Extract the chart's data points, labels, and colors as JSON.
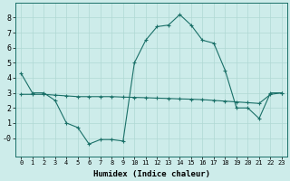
{
  "x": [
    0,
    1,
    2,
    3,
    4,
    5,
    6,
    7,
    8,
    9,
    10,
    11,
    12,
    13,
    14,
    15,
    16,
    17,
    18,
    19,
    20,
    21,
    22,
    23
  ],
  "y_curve": [
    4.3,
    3.0,
    3.0,
    2.5,
    1.0,
    0.7,
    -0.4,
    -0.1,
    -0.1,
    -0.2,
    5.0,
    6.5,
    7.4,
    7.5,
    8.2,
    7.5,
    6.5,
    6.3,
    4.5,
    2.0,
    2.0,
    1.3,
    3.0,
    3.0
  ],
  "y_flat": [
    2.9,
    2.9,
    2.9,
    2.85,
    2.8,
    2.75,
    2.75,
    2.75,
    2.75,
    2.72,
    2.7,
    2.68,
    2.65,
    2.63,
    2.6,
    2.58,
    2.55,
    2.5,
    2.45,
    2.4,
    2.35,
    2.3,
    2.9,
    3.0
  ],
  "line_color": "#1a7068",
  "bg_color": "#cdecea",
  "grid_color": "#b0d8d4",
  "xlabel": "Humidex (Indice chaleur)",
  "xlim": [
    -0.5,
    23.5
  ],
  "ylim": [
    -1.2,
    9.0
  ],
  "yticks": [
    0,
    1,
    2,
    3,
    4,
    5,
    6,
    7,
    8
  ],
  "ytick_labels": [
    "-0",
    "1",
    "2",
    "3",
    "4",
    "5",
    "6",
    "7",
    "8"
  ],
  "xticks": [
    0,
    1,
    2,
    3,
    4,
    5,
    6,
    7,
    8,
    9,
    10,
    11,
    12,
    13,
    14,
    15,
    16,
    17,
    18,
    19,
    20,
    21,
    22,
    23
  ],
  "marker": "+",
  "markersize": 3,
  "linewidth": 0.8,
  "xtick_fontsize": 5.0,
  "ytick_fontsize": 6.0,
  "xlabel_fontsize": 6.5
}
